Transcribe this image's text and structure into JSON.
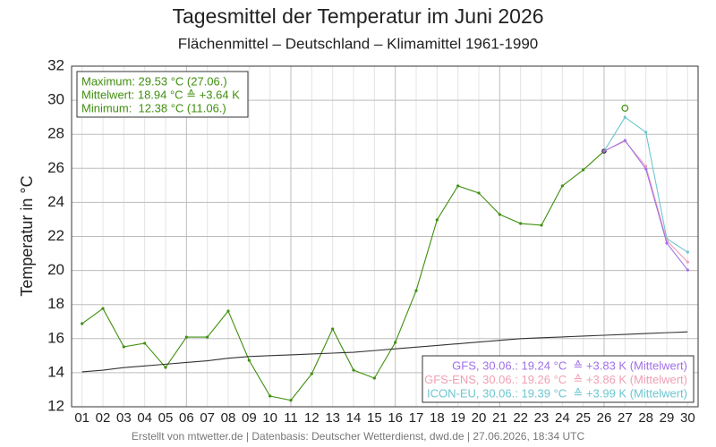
{
  "chart_data": {
    "type": "line",
    "title": "Tagesmittel der Temperatur im Juni 2026",
    "subtitle": "Flächenmittel – Deutschland – Klimamittel 1961-1990",
    "y_label": "Temperatur in °C",
    "footer": "Erstellt von mtwetter.de | Datenbasis: Deutscher Wetterdienst, dwd.de | 27.06.2026, 18:34 UTC",
    "info_box": [
      "Maximum: 29.53 °C (27.06.)",
      "Mittelwert: 18.94 °C ≙ +3.64 K",
      "Minimum:  12.38 °C (11.06.)"
    ],
    "info_color": "#3f8f0f",
    "categories": [
      "01",
      "02",
      "03",
      "04",
      "05",
      "06",
      "07",
      "08",
      "09",
      "10",
      "11",
      "12",
      "13",
      "14",
      "15",
      "16",
      "17",
      "18",
      "19",
      "20",
      "21",
      "22",
      "23",
      "24",
      "25",
      "26",
      "27",
      "28",
      "29",
      "30"
    ],
    "ylim": [
      12,
      32
    ],
    "yticks": [
      12,
      14,
      16,
      18,
      20,
      22,
      24,
      26,
      28,
      30,
      32
    ],
    "grid": true,
    "series": [
      {
        "color": "#3f8f0f",
        "marker": "dot",
        "values": [
          16.88,
          17.77,
          15.52,
          15.73,
          14.31,
          16.09,
          16.09,
          17.62,
          14.73,
          12.63,
          12.38,
          13.94,
          16.57,
          14.15,
          13.68,
          15.78,
          18.82,
          22.97,
          24.97,
          24.55,
          23.29,
          22.76,
          22.66,
          24.97,
          25.91,
          27.01,
          null,
          null,
          null,
          null
        ]
      },
      {
        "color": "#3f8f0f",
        "marker": "open-circle",
        "values": [
          null,
          null,
          null,
          null,
          null,
          null,
          null,
          null,
          null,
          null,
          null,
          null,
          null,
          null,
          null,
          null,
          null,
          null,
          null,
          null,
          null,
          null,
          null,
          null,
          null,
          null,
          29.53,
          null,
          null,
          null
        ]
      },
      {
        "color": "#333333",
        "marker": "none",
        "values": [
          14.05,
          14.15,
          14.3,
          14.4,
          14.5,
          14.6,
          14.7,
          14.85,
          14.95,
          15.0,
          15.05,
          15.1,
          15.15,
          15.2,
          15.3,
          15.4,
          15.5,
          15.6,
          15.7,
          15.8,
          15.9,
          16.0,
          16.05,
          16.1,
          16.15,
          16.2,
          16.25,
          16.3,
          16.35,
          16.4
        ]
      },
      {
        "name": "ICON-EU, 30.06.: 19.39 °C  ≙ +3.99 K (Mittelwert)",
        "color": "#6cc6d0",
        "marker": "dot",
        "values": [
          null,
          null,
          null,
          null,
          null,
          null,
          null,
          null,
          null,
          null,
          null,
          null,
          null,
          null,
          null,
          null,
          null,
          null,
          null,
          null,
          null,
          null,
          null,
          null,
          null,
          27.01,
          29.0,
          28.12,
          21.87,
          21.08
        ]
      },
      {
        "name": "GFS-ENS, 30.06.: 19.26 °C  ≙ +3.86 K (Mittelwert)",
        "color": "#f0a0b4",
        "marker": "dot",
        "values": [
          null,
          null,
          null,
          null,
          null,
          null,
          null,
          null,
          null,
          null,
          null,
          null,
          null,
          null,
          null,
          null,
          null,
          null,
          null,
          null,
          null,
          null,
          null,
          null,
          null,
          27.01,
          27.6,
          26.12,
          21.76,
          20.5
        ]
      },
      {
        "name": "GFS, 30.06.: 19.24 °C  ≙ +3.83 K (Mittelwert)",
        "color": "#a070e8",
        "marker": "dot",
        "values": [
          null,
          null,
          null,
          null,
          null,
          null,
          null,
          null,
          null,
          null,
          null,
          null,
          null,
          null,
          null,
          null,
          null,
          null,
          null,
          null,
          null,
          null,
          null,
          null,
          null,
          27.01,
          27.64,
          25.96,
          21.61,
          20.03
        ]
      }
    ]
  }
}
